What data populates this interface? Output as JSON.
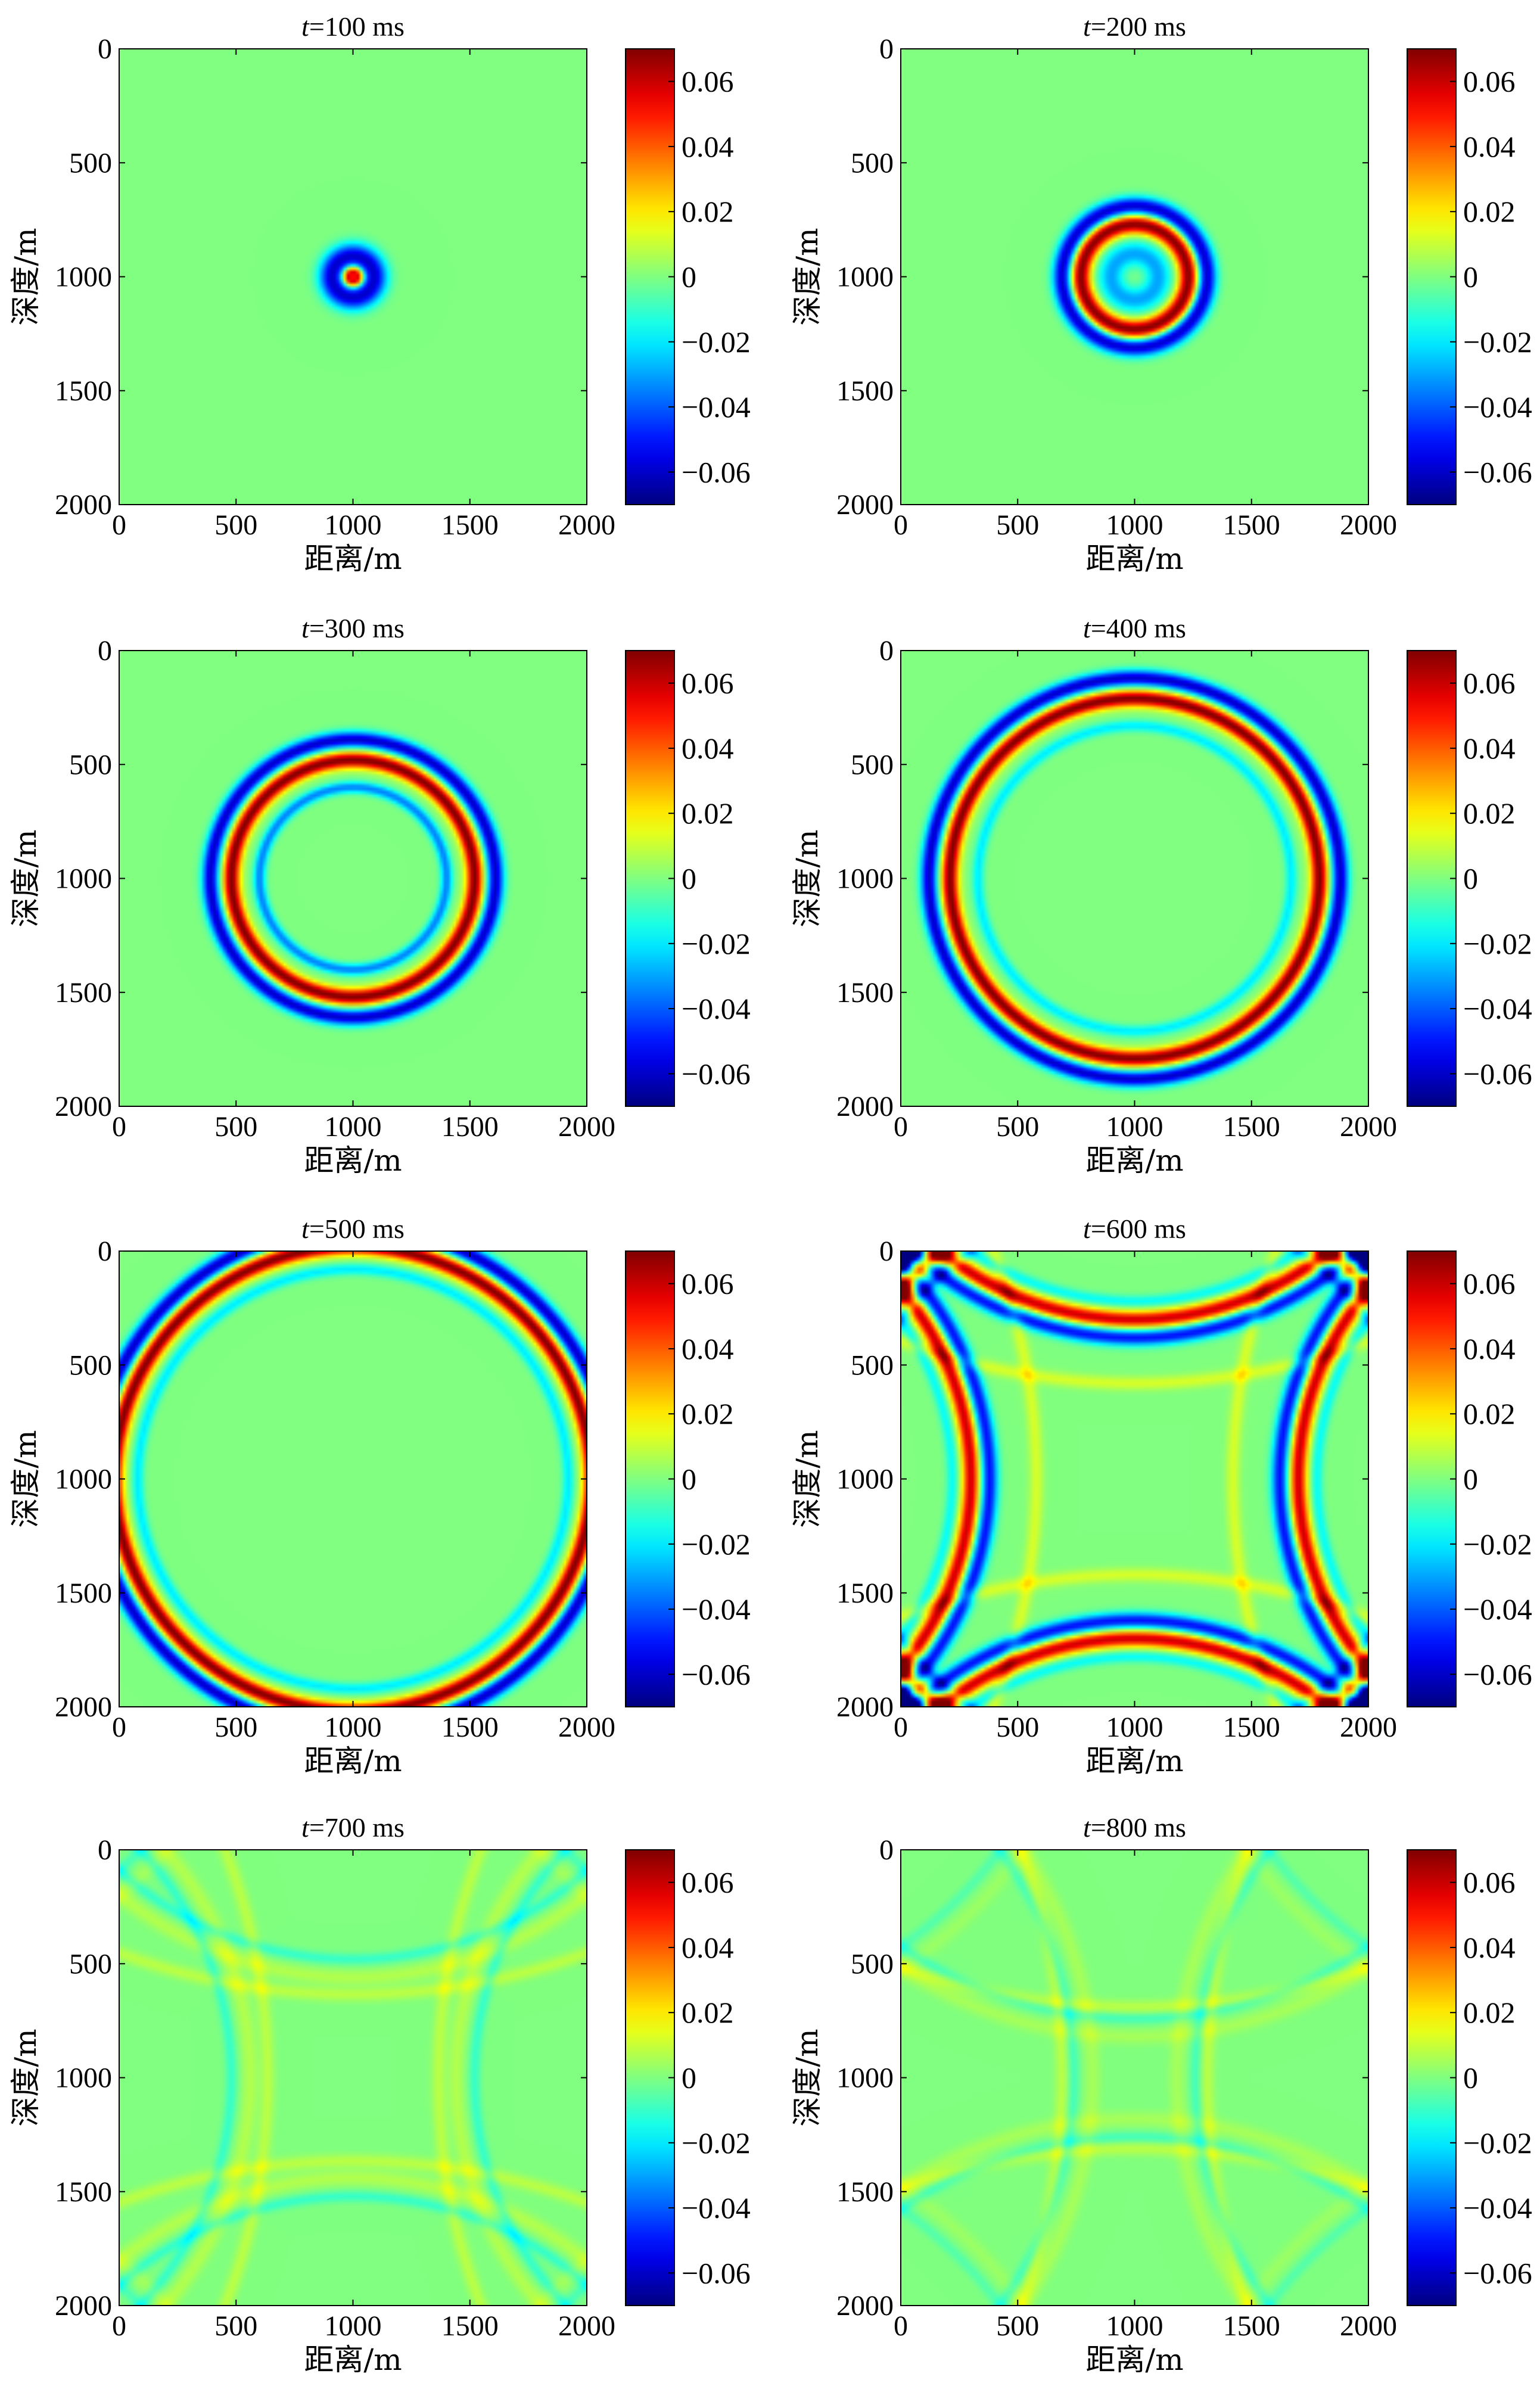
{
  "panels": [
    {
      "title_t": "t",
      "title_rest": "=100 ms"
    },
    {
      "title_t": "t",
      "title_rest": "=200 ms"
    },
    {
      "title_t": "t",
      "title_rest": "=300 ms"
    },
    {
      "title_t": "t",
      "title_rest": "=400 ms"
    },
    {
      "title_t": "t",
      "title_rest": "=500 ms"
    },
    {
      "title_t": "t",
      "title_rest": "=600 ms"
    },
    {
      "title_t": "t",
      "title_rest": "=700 ms"
    },
    {
      "title_t": "t",
      "title_rest": "=800 ms"
    }
  ],
  "xlabel": "距离/m",
  "ylabel": "深度/m",
  "axis_ticks": [
    "0",
    "500",
    "1000",
    "1500",
    "2000"
  ],
  "colorbar_ticks": [
    "0.06",
    "0.04",
    "0.02",
    "0",
    "−0.02",
    "−0.04",
    "−0.06"
  ],
  "chart_data": [
    {
      "type": "heatmap",
      "time_ms": 100,
      "xlim": [
        0,
        2000
      ],
      "ylim": [
        2000,
        0
      ],
      "clim": [
        -0.07,
        0.07
      ],
      "rings": [
        {
          "radius_m": 20,
          "amp": 0.07,
          "width_m": 25
        },
        {
          "radius_m": 90,
          "amp": -0.06,
          "width_m": 55
        }
      ],
      "reflections": false,
      "ghost_amp": 0
    },
    {
      "type": "heatmap",
      "time_ms": 200,
      "xlim": [
        0,
        2000
      ],
      "ylim": [
        2000,
        0
      ],
      "clim": [
        -0.07,
        0.07
      ],
      "rings": [
        {
          "radius_m": 100,
          "amp": -0.03,
          "width_m": 55
        },
        {
          "radius_m": 230,
          "amp": 0.07,
          "width_m": 40
        },
        {
          "radius_m": 310,
          "amp": -0.06,
          "width_m": 40
        }
      ],
      "reflections": false,
      "ghost_amp": 0
    },
    {
      "type": "heatmap",
      "time_ms": 300,
      "xlim": [
        0,
        2000
      ],
      "ylim": [
        2000,
        0
      ],
      "clim": [
        -0.07,
        0.07
      ],
      "rings": [
        {
          "radius_m": 400,
          "amp": -0.035,
          "width_m": 25
        },
        {
          "radius_m": 520,
          "amp": 0.07,
          "width_m": 35
        },
        {
          "radius_m": 610,
          "amp": -0.06,
          "width_m": 35
        }
      ],
      "reflections": false,
      "ghost_amp": 0
    },
    {
      "type": "heatmap",
      "time_ms": 400,
      "xlim": [
        0,
        2000
      ],
      "ylim": [
        2000,
        0
      ],
      "clim": [
        -0.07,
        0.07
      ],
      "rings": [
        {
          "radius_m": 670,
          "amp": -0.02,
          "width_m": 25
        },
        {
          "radius_m": 790,
          "amp": 0.07,
          "width_m": 35
        },
        {
          "radius_m": 880,
          "amp": -0.06,
          "width_m": 35
        }
      ],
      "reflections": false,
      "ghost_amp": 0
    },
    {
      "type": "heatmap",
      "time_ms": 500,
      "xlim": [
        0,
        2000
      ],
      "ylim": [
        2000,
        0
      ],
      "clim": [
        -0.07,
        0.07
      ],
      "rings": [
        {
          "radius_m": 920,
          "amp": -0.02,
          "width_m": 25
        },
        {
          "radius_m": 1020,
          "amp": 0.07,
          "width_m": 35
        },
        {
          "radius_m": 1105,
          "amp": -0.06,
          "width_m": 35
        }
      ],
      "reflections": false,
      "ghost_amp": 0
    },
    {
      "type": "heatmap",
      "time_ms": 600,
      "xlim": [
        0,
        2000
      ],
      "ylim": [
        2000,
        0
      ],
      "clim": [
        -0.07,
        0.07
      ],
      "rings": [
        {
          "radius_m": 1220,
          "amp": -0.02,
          "width_m": 25
        },
        {
          "radius_m": 1300,
          "amp": 0.07,
          "width_m": 35
        },
        {
          "radius_m": 1380,
          "amp": -0.06,
          "width_m": 35
        }
      ],
      "reflections": true,
      "ghost_amp": 0.012
    },
    {
      "type": "heatmap",
      "time_ms": 700,
      "xlim": [
        0,
        2000
      ],
      "ylim": [
        2000,
        0
      ],
      "clim": [
        -0.07,
        0.07
      ],
      "rings": [
        {
          "radius_m": 1480,
          "amp": -0.012,
          "width_m": 25
        },
        {
          "radius_m": 1560,
          "amp": 0.008,
          "width_m": 35
        }
      ],
      "reflections": true,
      "ghost_amp": 0.008
    },
    {
      "type": "heatmap",
      "time_ms": 800,
      "xlim": [
        0,
        2000
      ],
      "ylim": [
        2000,
        0
      ],
      "clim": [
        -0.07,
        0.07
      ],
      "rings": [
        {
          "radius_m": 1740,
          "amp": -0.01,
          "width_m": 25
        },
        {
          "radius_m": 1820,
          "amp": 0.006,
          "width_m": 35
        }
      ],
      "reflections": true,
      "ghost_amp": 0.008
    }
  ]
}
